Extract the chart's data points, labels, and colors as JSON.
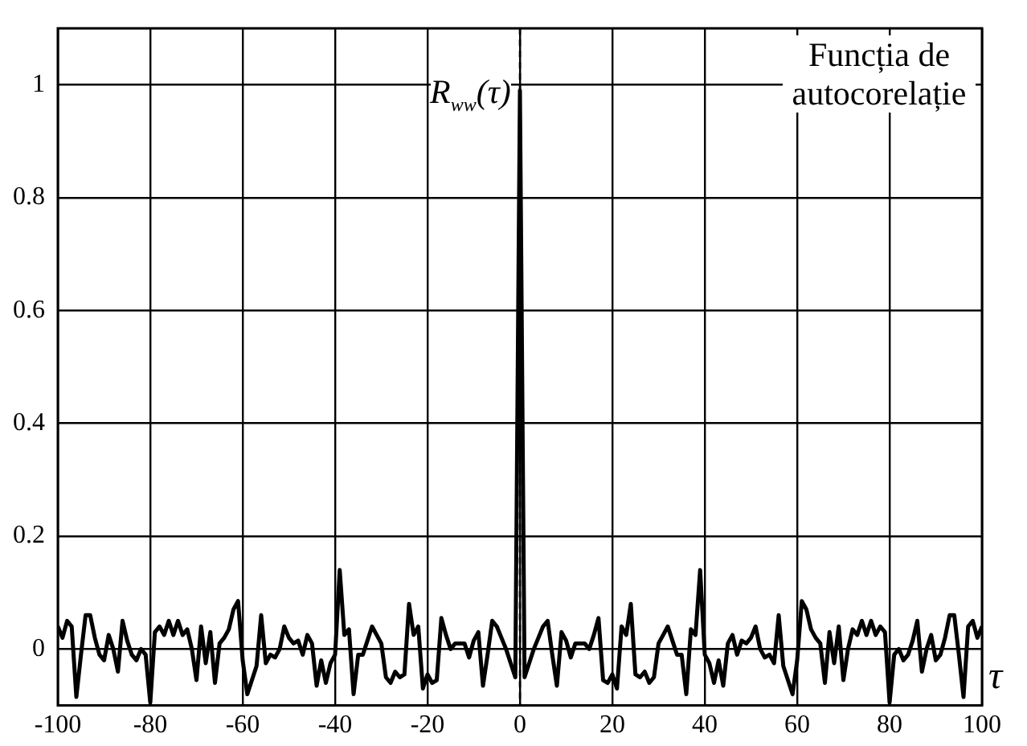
{
  "chart_data": {
    "type": "line",
    "xlabel": "τ",
    "annotations": [
      {
        "text": "R$_{ww}$(τ)",
        "x": 0,
        "y": 1
      },
      "Funcția de autocorelație"
    ],
    "x": [
      -100,
      -99,
      -98,
      -97,
      -96,
      -95,
      -94,
      -93,
      -92,
      -91,
      -90,
      -89,
      -88,
      -87,
      -86,
      -85,
      -84,
      -83,
      -82,
      -81,
      -80,
      -79,
      -78,
      -77,
      -76,
      -75,
      -74,
      -73,
      -72,
      -71,
      -70,
      -69,
      -68,
      -67,
      -66,
      -65,
      -64,
      -63,
      -62,
      -61,
      -60,
      -59,
      -58,
      -57,
      -56,
      -55,
      -54,
      -53,
      -52,
      -51,
      -50,
      -49,
      -48,
      -47,
      -46,
      -45,
      -44,
      -43,
      -42,
      -41,
      -40,
      -39,
      -38,
      -37,
      -36,
      -35,
      -34,
      -33,
      -32,
      -31,
      -30,
      -29,
      -28,
      -27,
      -26,
      -25,
      -24,
      -23,
      -22,
      -21,
      -20,
      -19,
      -18,
      -17,
      -16,
      -15,
      -14,
      -13,
      -12,
      -11,
      -10,
      -9,
      -8,
      -7,
      -6,
      -5,
      -4,
      -3,
      -2,
      -1,
      0,
      1,
      2,
      3,
      4,
      5,
      6,
      7,
      8,
      9,
      10,
      11,
      12,
      13,
      14,
      15,
      16,
      17,
      18,
      19,
      20,
      21,
      22,
      23,
      24,
      25,
      26,
      27,
      28,
      29,
      30,
      31,
      32,
      33,
      34,
      35,
      36,
      37,
      38,
      39,
      40,
      41,
      42,
      43,
      44,
      45,
      46,
      47,
      48,
      49,
      50,
      51,
      52,
      53,
      54,
      55,
      56,
      57,
      58,
      59,
      60,
      61,
      62,
      63,
      64,
      65,
      66,
      67,
      68,
      69,
      70,
      71,
      72,
      73,
      74,
      75,
      76,
      77,
      78,
      79,
      80,
      81,
      82,
      83,
      84,
      85,
      86,
      87,
      88,
      89,
      90,
      91,
      92,
      93,
      94,
      95,
      96,
      97,
      98,
      99,
      100
    ],
    "series": [
      {
        "color": "#000000",
        "values": [
          0.04,
          0.02,
          0.05,
          0.04,
          -0.085,
          -0.01,
          0.06,
          0.06,
          0.02,
          -0.01,
          -0.02,
          0.025,
          0,
          -0.04,
          0.05,
          0.015,
          -0.01,
          -0.02,
          0,
          -0.01,
          -0.095,
          0.03,
          0.04,
          0.025,
          0.05,
          0.025,
          0.05,
          0.025,
          0.035,
          0,
          -0.055,
          0.04,
          -0.025,
          0.03,
          -0.06,
          0.01,
          0.02,
          0.035,
          0.07,
          0.085,
          -0.02,
          -0.08,
          -0.055,
          -0.03,
          0.06,
          -0.025,
          -0.01,
          -0.015,
          0,
          0.04,
          0.02,
          0.01,
          0.015,
          -0.01,
          0.025,
          0.01,
          -0.065,
          -0.02,
          -0.06,
          -0.025,
          -0.01,
          0.14,
          0.025,
          0.035,
          -0.08,
          -0.01,
          -0.01,
          0.015,
          0.04,
          0.025,
          0.01,
          -0.05,
          -0.06,
          -0.04,
          -0.05,
          -0.045,
          0.08,
          0.025,
          0.04,
          -0.07,
          -0.045,
          -0.06,
          -0.055,
          0.055,
          0.025,
          0,
          0.01,
          0.01,
          0.01,
          -0.015,
          0.015,
          0.03,
          -0.065,
          -0.01,
          0.05,
          0.04,
          0.02,
          0,
          -0.025,
          -0.05,
          0.99,
          -0.05,
          -0.025,
          0,
          0.02,
          0.04,
          0.05,
          -0.01,
          -0.065,
          0.03,
          0.015,
          -0.015,
          0.01,
          0.01,
          0.01,
          0,
          0.025,
          0.055,
          -0.055,
          -0.06,
          -0.045,
          -0.07,
          0.04,
          0.025,
          0.08,
          -0.045,
          -0.05,
          -0.04,
          -0.06,
          -0.05,
          0.01,
          0.025,
          0.04,
          0.015,
          -0.01,
          -0.01,
          -0.08,
          0.035,
          0.025,
          0.14,
          -0.01,
          -0.025,
          -0.06,
          -0.02,
          -0.065,
          0.01,
          0.025,
          -0.01,
          0.015,
          0.01,
          0.02,
          0.04,
          0,
          -0.015,
          -0.01,
          -0.025,
          0.06,
          -0.03,
          -0.055,
          -0.08,
          -0.02,
          0.085,
          0.07,
          0.035,
          0.02,
          0.01,
          -0.06,
          0.03,
          -0.025,
          0.04,
          -0.055,
          0,
          0.035,
          0.025,
          0.05,
          0.025,
          0.05,
          0.025,
          0.04,
          0.03,
          -0.095,
          -0.01,
          0,
          -0.02,
          -0.01,
          0.015,
          0.05,
          -0.04,
          0,
          0.025,
          -0.02,
          -0.01,
          0.02,
          0.06,
          0.06,
          -0.01,
          -0.085,
          0.04,
          0.05,
          0.02,
          0.04
        ]
      }
    ],
    "xlim": [
      -100,
      100
    ],
    "xticks": [
      -100,
      -80,
      -60,
      -40,
      -20,
      0,
      20,
      40,
      60,
      80,
      100
    ],
    "ylim": [
      -0.1,
      1.1
    ],
    "yticks": [
      0,
      0.2,
      0.4,
      0.6,
      0.8,
      1
    ],
    "ref_lines": [
      {
        "axis": "x",
        "value": 0,
        "color": "#000000",
        "line_style": "dashed"
      }
    ],
    "grid": true,
    "line_style": "solid"
  }
}
